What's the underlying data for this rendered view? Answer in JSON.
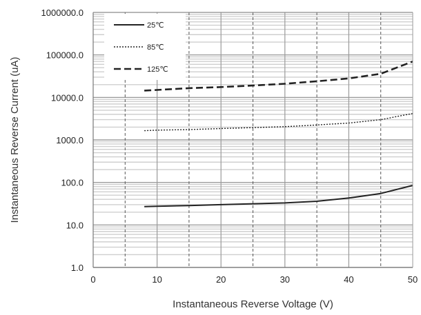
{
  "chart_data": {
    "type": "line",
    "xlabel": "Instantaneous Reverse Voltage (V)",
    "ylabel": "Instantaneous Reverse Current (uA)",
    "x_ticks": [
      "0",
      "10",
      "20",
      "30",
      "40",
      "50"
    ],
    "y_ticks": [
      "1.0",
      "10.0",
      "100.0",
      "1000.0",
      "10000.0",
      "100000.0",
      "1000000.0"
    ],
    "xlim": [
      0,
      50
    ],
    "ylim": [
      1,
      1000000
    ],
    "y_scale": "log",
    "grid": true,
    "legend_position": "top-left",
    "series": [
      {
        "name": "25℃",
        "style": "solid",
        "x": [
          8,
          10,
          15,
          20,
          25,
          30,
          35,
          40,
          45,
          50
        ],
        "y": [
          27,
          27.5,
          28.5,
          30,
          31.5,
          33,
          36,
          43,
          55,
          85
        ]
      },
      {
        "name": "85℃",
        "style": "dotted",
        "x": [
          8,
          10,
          15,
          20,
          25,
          30,
          35,
          40,
          45,
          50
        ],
        "y": [
          1650,
          1700,
          1750,
          1850,
          1950,
          2050,
          2250,
          2500,
          3000,
          4200
        ]
      },
      {
        "name": "125℃",
        "style": "dashed",
        "x": [
          8,
          10,
          15,
          20,
          25,
          30,
          35,
          40,
          45,
          50
        ],
        "y": [
          14500,
          15000,
          16500,
          17500,
          19000,
          21000,
          24000,
          28000,
          36000,
          70000
        ]
      }
    ]
  }
}
